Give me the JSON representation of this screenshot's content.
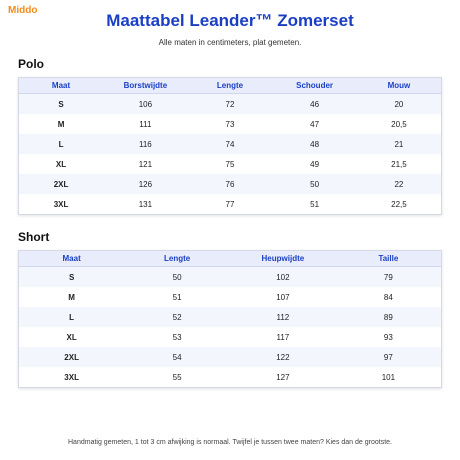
{
  "logo": "Middo",
  "header": {
    "title": "Maattabel Leander™ Zomerset",
    "subtitle": "Alle maten in centimeters, plat gemeten."
  },
  "tables": [
    {
      "heading": "Polo",
      "columns": [
        "Maat",
        "Borstwijdte",
        "Lengte",
        "Schouder",
        "Mouw"
      ],
      "rows": [
        [
          "S",
          "106",
          "72",
          "46",
          "20"
        ],
        [
          "M",
          "111",
          "73",
          "47",
          "20,5"
        ],
        [
          "L",
          "116",
          "74",
          "48",
          "21"
        ],
        [
          "XL",
          "121",
          "75",
          "49",
          "21,5"
        ],
        [
          "2XL",
          "126",
          "76",
          "50",
          "22"
        ],
        [
          "3XL",
          "131",
          "77",
          "51",
          "22,5"
        ]
      ]
    },
    {
      "heading": "Short",
      "columns": [
        "Maat",
        "Lengte",
        "Heupwijdte",
        "Taille"
      ],
      "rows": [
        [
          "S",
          "50",
          "102",
          "79"
        ],
        [
          "M",
          "51",
          "107",
          "84"
        ],
        [
          "L",
          "52",
          "112",
          "89"
        ],
        [
          "XL",
          "53",
          "117",
          "93"
        ],
        [
          "2XL",
          "54",
          "122",
          "97"
        ],
        [
          "3XL",
          "55",
          "127",
          "101"
        ]
      ]
    }
  ],
  "footer": "Handmatig gemeten, 1 tot 3 cm afwijking is normaal. Twijfel je tussen twee maten? Kies dan de grootste."
}
